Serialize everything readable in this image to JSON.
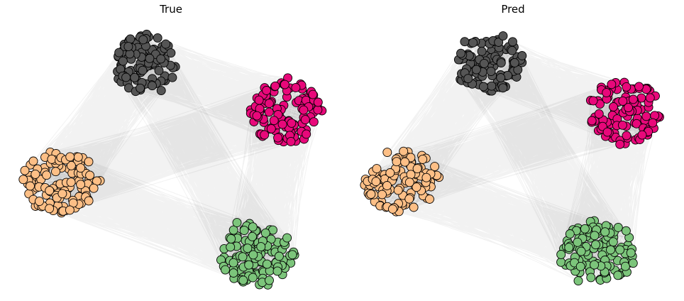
{
  "panels": [
    {
      "title": "True",
      "clusters": [
        {
          "name": "gray",
          "color": "#555555",
          "nodes": 110
        },
        {
          "name": "magenta",
          "color": "#e8087a",
          "nodes": 110
        },
        {
          "name": "peach",
          "color": "#fdbf86",
          "nodes": 120
        },
        {
          "name": "green",
          "color": "#7cc57b",
          "nodes": 120
        }
      ]
    },
    {
      "title": "Pred",
      "clusters": [
        {
          "name": "gray",
          "color": "#555555",
          "nodes": 110
        },
        {
          "name": "magenta",
          "color": "#e8087a",
          "nodes": 110
        },
        {
          "name": "peach",
          "color": "#fdbf86",
          "nodes": 120
        },
        {
          "name": "green",
          "color": "#7cc57b",
          "nodes": 120
        }
      ]
    }
  ],
  "style": {
    "edge_color": "#000000",
    "node_stroke": "#000000"
  }
}
